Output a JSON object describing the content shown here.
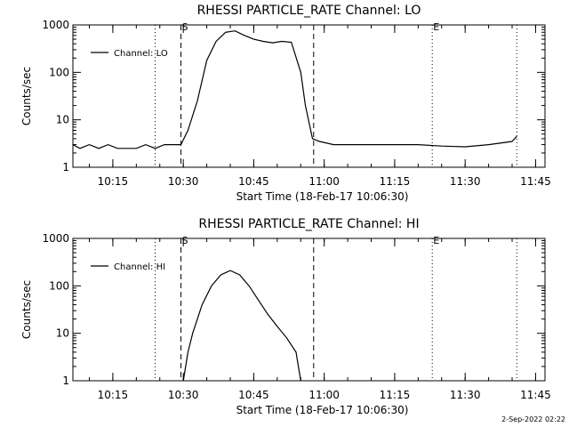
{
  "chart_data": [
    {
      "type": "line",
      "title": "RHESSI PARTICLE_RATE Channel: LO",
      "xlabel": "Start Time (18-Feb-17 10:06:30)",
      "ylabel": "Counts/sec",
      "y_scale": "log",
      "ylim": [
        1,
        1000
      ],
      "xlim": [
        "10:06:30",
        "11:47:00"
      ],
      "x_ticks": [
        "10:15",
        "10:30",
        "10:45",
        "11:00",
        "11:15",
        "11:30",
        "11:45"
      ],
      "y_ticks": [
        "1",
        "10",
        "100",
        "1000"
      ],
      "legend": {
        "entries": [
          "Channel: LO"
        ],
        "placement": "top-left"
      },
      "markers": [
        {
          "label": "S",
          "time": "10:29:30",
          "style": "dashed"
        },
        {
          "label": "",
          "time": "10:57:45",
          "style": "dashed"
        },
        {
          "label": "E",
          "time": "11:23:00",
          "style": "dotted"
        },
        {
          "label": "",
          "time": "10:24:00",
          "style": "dotted"
        },
        {
          "label": "",
          "time": "11:41:00",
          "style": "dotted"
        }
      ],
      "series": [
        {
          "name": "Channel: LO",
          "x": [
            "10:06:30",
            "10:08:00",
            "10:10:00",
            "10:12:00",
            "10:14:00",
            "10:16:00",
            "10:18:00",
            "10:20:00",
            "10:22:00",
            "10:24:00",
            "10:26:00",
            "10:28:00",
            "10:29:30",
            "10:31:00",
            "10:33:00",
            "10:35:00",
            "10:37:00",
            "10:39:00",
            "10:41:00",
            "10:43:00",
            "10:45:00",
            "10:47:00",
            "10:49:00",
            "10:51:00",
            "10:53:00",
            "10:55:00",
            "10:56:00",
            "10:57:30",
            "10:59:00",
            "11:02:00",
            "11:05:00",
            "11:10:00",
            "11:15:00",
            "11:20:00",
            "11:25:00",
            "11:30:00",
            "11:35:00",
            "11:40:00",
            "11:41:00"
          ],
          "y": [
            3,
            2.5,
            3,
            2.5,
            3,
            2.5,
            2.5,
            2.5,
            3,
            2.5,
            3,
            3,
            3,
            6,
            25,
            180,
            450,
            700,
            750,
            600,
            500,
            450,
            420,
            450,
            430,
            100,
            20,
            4,
            3.5,
            3,
            3,
            3,
            3,
            3,
            2.8,
            2.7,
            3,
            3.5,
            4.5
          ]
        }
      ]
    },
    {
      "type": "line",
      "title": "RHESSI PARTICLE_RATE Channel: HI",
      "xlabel": "Start Time (18-Feb-17 10:06:30)",
      "ylabel": "Counts/sec",
      "y_scale": "log",
      "ylim": [
        1,
        1000
      ],
      "xlim": [
        "10:06:30",
        "11:47:00"
      ],
      "x_ticks": [
        "10:15",
        "10:30",
        "10:45",
        "11:00",
        "11:15",
        "11:30",
        "11:45"
      ],
      "y_ticks": [
        "1",
        "10",
        "100",
        "1000"
      ],
      "legend": {
        "entries": [
          "Channel: HI"
        ],
        "placement": "top-left"
      },
      "markers": [
        {
          "label": "S",
          "time": "10:29:30",
          "style": "dashed"
        },
        {
          "label": "",
          "time": "10:57:45",
          "style": "dashed"
        },
        {
          "label": "E",
          "time": "11:23:00",
          "style": "dotted"
        },
        {
          "label": "",
          "time": "10:24:00",
          "style": "dotted"
        },
        {
          "label": "",
          "time": "11:41:00",
          "style": "dotted"
        }
      ],
      "series": [
        {
          "name": "Channel: HI",
          "x": [
            "10:30:00",
            "10:31:00",
            "10:32:00",
            "10:34:00",
            "10:36:00",
            "10:38:00",
            "10:40:00",
            "10:42:00",
            "10:44:00",
            "10:46:00",
            "10:48:00",
            "10:50:00",
            "10:52:00",
            "10:54:00",
            "10:54:30",
            "10:55:00"
          ],
          "y": [
            1,
            4,
            10,
            40,
            100,
            170,
            210,
            170,
            100,
            50,
            25,
            14,
            8,
            4,
            2,
            1
          ]
        }
      ]
    }
  ],
  "footer": {
    "date": "2-Sep-2022 02:22"
  }
}
